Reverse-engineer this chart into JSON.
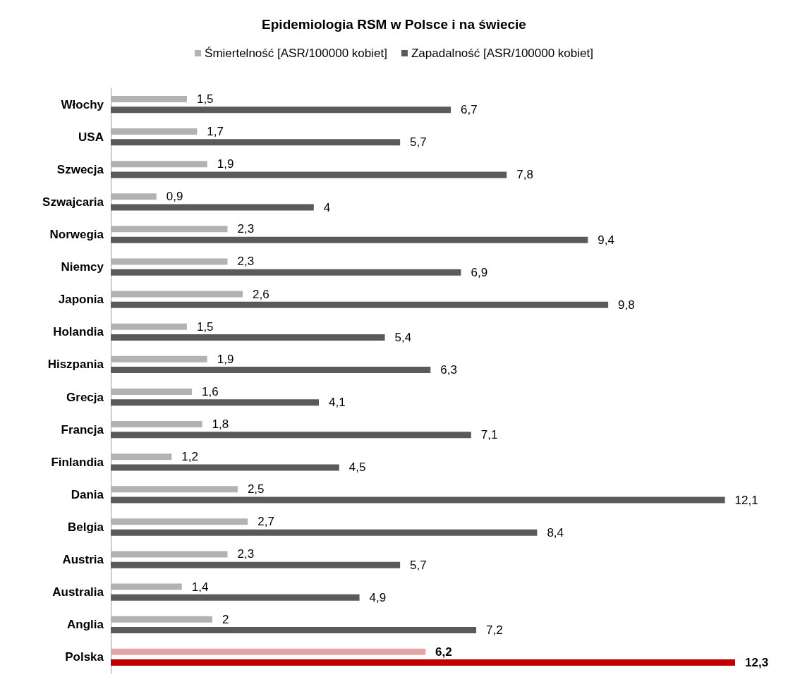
{
  "chart_data": {
    "type": "bar",
    "orientation": "horizontal",
    "title": "Epidemiologia RSM w Polsce i na świecie",
    "categories": [
      "Włochy",
      "USA",
      "Szwecja",
      "Szwajcaria",
      "Norwegia",
      "Niemcy",
      "Japonia",
      "Holandia",
      "Hiszpania",
      "Grecja",
      "Francja",
      "Finlandia",
      "Dania",
      "Belgia",
      "Austria",
      "Australia",
      "Anglia",
      "Polska"
    ],
    "series": [
      {
        "name": "Śmiertelność [ASR/100000 kobiet]",
        "color": "#b2b2b2",
        "colors": [
          "#b2b2b2",
          "#b2b2b2",
          "#b2b2b2",
          "#b2b2b2",
          "#b2b2b2",
          "#b2b2b2",
          "#b2b2b2",
          "#b2b2b2",
          "#b2b2b2",
          "#b2b2b2",
          "#b2b2b2",
          "#b2b2b2",
          "#b2b2b2",
          "#b2b2b2",
          "#b2b2b2",
          "#b2b2b2",
          "#b2b2b2",
          "#e6a3a3"
        ],
        "values": [
          1.5,
          1.7,
          1.9,
          0.9,
          2.3,
          2.3,
          2.6,
          1.5,
          1.9,
          1.6,
          1.8,
          1.2,
          2.5,
          2.7,
          2.3,
          1.4,
          2,
          6.2
        ],
        "value_labels": [
          "1,5",
          "1,7",
          "1,9",
          "0,9",
          "2,3",
          "2,3",
          "2,6",
          "1,5",
          "1,9",
          "1,6",
          "1,8",
          "1,2",
          "2,5",
          "2,7",
          "2,3",
          "1,4",
          "2",
          "6,2"
        ]
      },
      {
        "name": "Zapadalność [ASR/100000 kobiet]",
        "color": "#5a5a5a",
        "colors": [
          "#5a5a5a",
          "#5a5a5a",
          "#5a5a5a",
          "#5a5a5a",
          "#5a5a5a",
          "#5a5a5a",
          "#5a5a5a",
          "#5a5a5a",
          "#5a5a5a",
          "#5a5a5a",
          "#5a5a5a",
          "#5a5a5a",
          "#5a5a5a",
          "#5a5a5a",
          "#5a5a5a",
          "#5a5a5a",
          "#5a5a5a",
          "#c00000"
        ],
        "values": [
          6.7,
          5.7,
          7.8,
          4,
          9.4,
          6.9,
          9.8,
          5.4,
          6.3,
          4.1,
          7.1,
          4.5,
          12.1,
          8.4,
          5.7,
          4.9,
          7.2,
          12.3
        ],
        "value_labels": [
          "6,7",
          "5,7",
          "7,8",
          "4",
          "9,4",
          "6,9",
          "9,8",
          "5,4",
          "6,3",
          "4,1",
          "7,1",
          "4,5",
          "12,1",
          "8,4",
          "5,7",
          "4,9",
          "7,2",
          "12,3"
        ]
      }
    ],
    "legend": "top"
  }
}
